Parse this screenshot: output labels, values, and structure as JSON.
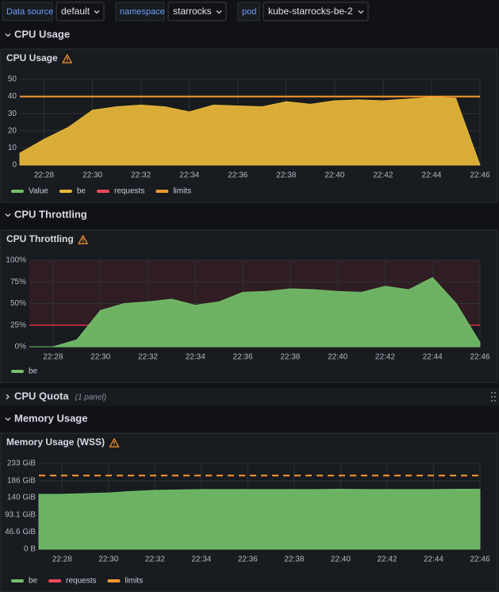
{
  "variables": [
    {
      "label": "Data source",
      "value": "default"
    },
    {
      "label": "namespace",
      "value": "starrocks"
    },
    {
      "label": "pod",
      "value": "kube-starrocks-be-2"
    }
  ],
  "rows": [
    {
      "title": "CPU Usage"
    },
    {
      "title": "CPU Throttling"
    },
    {
      "title": "CPU Quota",
      "note": "(1 panel)"
    },
    {
      "title": "Memory Usage"
    }
  ],
  "chart_data": [
    {
      "type": "area",
      "title": "CPU Usage",
      "x": [
        "22:27",
        "22:28",
        "22:29",
        "22:30",
        "22:31",
        "22:32",
        "22:33",
        "22:34",
        "22:35",
        "22:36",
        "22:37",
        "22:38",
        "22:39",
        "22:40",
        "22:41",
        "22:42",
        "22:43",
        "22:44",
        "22:45",
        "22:46"
      ],
      "xlim": [
        "22:27",
        "22:46"
      ],
      "xticks": [
        "22:28",
        "22:30",
        "22:32",
        "22:34",
        "22:36",
        "22:38",
        "22:40",
        "22:42",
        "22:44",
        "22:46"
      ],
      "ylim": [
        0,
        50
      ],
      "yticks": [
        0,
        10,
        20,
        30,
        40,
        50
      ],
      "grid": true,
      "series": [
        {
          "name": "Value",
          "color": "#73bf69",
          "style": "line",
          "values": [
            null,
            null,
            null,
            null,
            null,
            null,
            null,
            null,
            null,
            null,
            null,
            null,
            null,
            null,
            null,
            null,
            null,
            null,
            null,
            null
          ]
        },
        {
          "name": "be",
          "color": "#eab839",
          "style": "area",
          "values": [
            7,
            15,
            22,
            32,
            34,
            35,
            34,
            31,
            35,
            34.5,
            34,
            37,
            35.5,
            37.5,
            38,
            37.5,
            38.5,
            39.5,
            39,
            0
          ]
        },
        {
          "name": "requests",
          "color": "#f2495c",
          "style": "line",
          "values": [
            null,
            null,
            null,
            null,
            null,
            null,
            null,
            null,
            null,
            null,
            null,
            null,
            null,
            null,
            null,
            null,
            null,
            null,
            null,
            null
          ]
        },
        {
          "name": "limits",
          "color": "#ff9830",
          "style": "line",
          "values": [
            40,
            40,
            40,
            40,
            40,
            40,
            40,
            40,
            40,
            40,
            40,
            40,
            40,
            40,
            40,
            40,
            40,
            40,
            40,
            40
          ]
        }
      ]
    },
    {
      "type": "area",
      "title": "CPU Throttling",
      "x": [
        "22:27",
        "22:28",
        "22:29",
        "22:30",
        "22:31",
        "22:32",
        "22:33",
        "22:34",
        "22:35",
        "22:36",
        "22:37",
        "22:38",
        "22:39",
        "22:40",
        "22:41",
        "22:42",
        "22:43",
        "22:44",
        "22:45",
        "22:46"
      ],
      "xlim": [
        "22:27",
        "22:46"
      ],
      "xticks": [
        "22:28",
        "22:30",
        "22:32",
        "22:34",
        "22:36",
        "22:38",
        "22:40",
        "22:42",
        "22:44",
        "22:46"
      ],
      "ylim": [
        0,
        100
      ],
      "yticks": [
        {
          "value": 0,
          "label": "0%"
        },
        {
          "value": 25,
          "label": "25%"
        },
        {
          "value": 50,
          "label": "50%"
        },
        {
          "value": 75,
          "label": "75%"
        },
        {
          "value": 100,
          "label": "100%"
        }
      ],
      "grid": true,
      "threshold": {
        "value": 25,
        "color": "#e02f44"
      },
      "series": [
        {
          "name": "be",
          "color": "#73bf69",
          "style": "area",
          "values": [
            0,
            0,
            8,
            42,
            50,
            52,
            55,
            48,
            52,
            63,
            64,
            67,
            66,
            64,
            63,
            70,
            66,
            80,
            50,
            5
          ]
        }
      ]
    },
    {
      "type": "area",
      "title": "Memory Usage (WSS)",
      "x": [
        "22:27",
        "22:28",
        "22:29",
        "22:30",
        "22:31",
        "22:32",
        "22:33",
        "22:34",
        "22:35",
        "22:36",
        "22:37",
        "22:38",
        "22:39",
        "22:40",
        "22:41",
        "22:42",
        "22:43",
        "22:44",
        "22:45",
        "22:46"
      ],
      "xlim": [
        "22:27",
        "22:46"
      ],
      "xticks": [
        "22:28",
        "22:30",
        "22:32",
        "22:34",
        "22:36",
        "22:38",
        "22:40",
        "22:42",
        "22:44",
        "22:46"
      ],
      "ylim": [
        0,
        233
      ],
      "yticks": [
        {
          "value": 0,
          "label": "0 B"
        },
        {
          "value": 46.6,
          "label": "46.6 GiB"
        },
        {
          "value": 93.1,
          "label": "93.1 GiB"
        },
        {
          "value": 140,
          "label": "140 GiB"
        },
        {
          "value": 186,
          "label": "186 GiB"
        },
        {
          "value": 233,
          "label": "233 GiB"
        }
      ],
      "grid": true,
      "series": [
        {
          "name": "be",
          "color": "#73bf69",
          "style": "area",
          "values": [
            149,
            149,
            151,
            153,
            157,
            160,
            161,
            162,
            162,
            162,
            162,
            162,
            162,
            163,
            162,
            162,
            162,
            162,
            163,
            163
          ]
        },
        {
          "name": "requests",
          "color": "#f2495c",
          "style": "line",
          "values": [
            null,
            null,
            null,
            null,
            null,
            null,
            null,
            null,
            null,
            null,
            null,
            null,
            null,
            null,
            null,
            null,
            null,
            null,
            null,
            null
          ]
        },
        {
          "name": "limits",
          "color": "#ff9830",
          "style": "dashed",
          "values": [
            200,
            200,
            200,
            200,
            200,
            200,
            200,
            200,
            200,
            200,
            200,
            200,
            200,
            200,
            200,
            200,
            200,
            200,
            200,
            200
          ]
        }
      ]
    }
  ]
}
